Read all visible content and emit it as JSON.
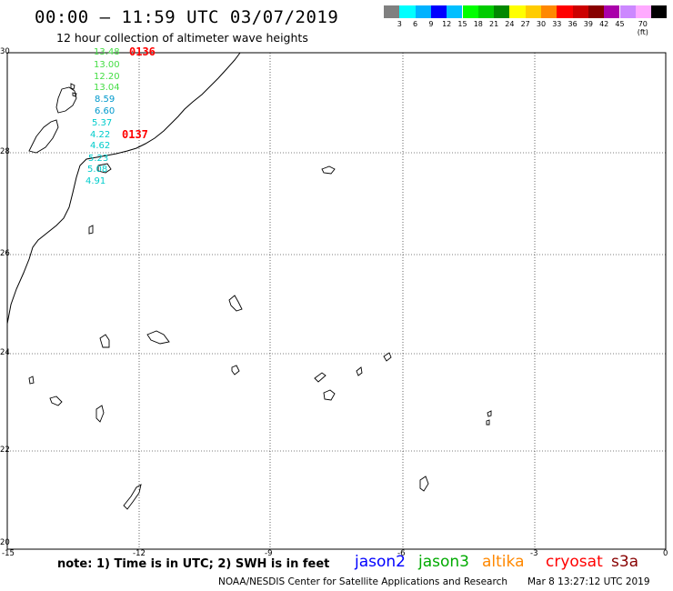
{
  "title": "00:00 – 11:59 UTC 03/07/2019",
  "subtitle": "12 hour collection of altimeter wave heights",
  "legend": {
    "colors": [
      "#808080",
      "#00ffff",
      "#00b2ff",
      "#0000ff",
      "#00bfff",
      "#00ff00",
      "#00cc00",
      "#008800",
      "#ffff00",
      "#ffcc00",
      "#ff8800",
      "#ff0000",
      "#cc0000",
      "#880000",
      "#aa00aa",
      "#cc88ff",
      "#ffaaff",
      "#000000"
    ],
    "labels": [
      "3",
      "6",
      "9",
      "12",
      "15",
      "18",
      "21",
      "24",
      "27",
      "30",
      "33",
      "36",
      "39",
      "42",
      "45",
      "70 (ft)"
    ]
  },
  "axes": {
    "lat_labels": [
      "30",
      "28",
      "26",
      "24",
      "22",
      "20"
    ],
    "lon_labels": [
      "-15",
      "-12",
      "-9",
      "-6",
      "-3",
      "0"
    ]
  },
  "passes": [
    {
      "label": "0136",
      "color": "#ff0000"
    },
    {
      "label": "0137",
      "color": "#ff0000"
    }
  ],
  "wave_heights": [
    {
      "value": "13.48",
      "color": "#44dd44"
    },
    {
      "value": "13.00",
      "color": "#44dd44"
    },
    {
      "value": "12.20",
      "color": "#44dd44"
    },
    {
      "value": "13.04",
      "color": "#44dd44"
    },
    {
      "value": "8.59",
      "color": "#0099cc"
    },
    {
      "value": "6.60",
      "color": "#0099cc"
    },
    {
      "value": "5.37",
      "color": "#00cccc"
    },
    {
      "value": "4.22",
      "color": "#00cccc"
    },
    {
      "value": "4.62",
      "color": "#00cccc"
    },
    {
      "value": "5.23",
      "color": "#00cccc"
    },
    {
      "value": "5.08",
      "color": "#00cccc"
    },
    {
      "value": "4.91",
      "color": "#00cccc"
    }
  ],
  "note": "note: 1) Time is in UTC; 2) SWH is in feet",
  "satellites": [
    {
      "name": "jason2",
      "color": "#0000ff"
    },
    {
      "name": "jason3",
      "color": "#00aa00"
    },
    {
      "name": "altika",
      "color": "#ff8800"
    },
    {
      "name": "cryosat",
      "color": "#ff0000"
    },
    {
      "name": "s3a",
      "color": "#880000"
    }
  ],
  "credit": "NOAA/NESDIS Center for Satellite Applications and Research",
  "credit_date": "Mar  8 13:27:12 UTC 2019"
}
